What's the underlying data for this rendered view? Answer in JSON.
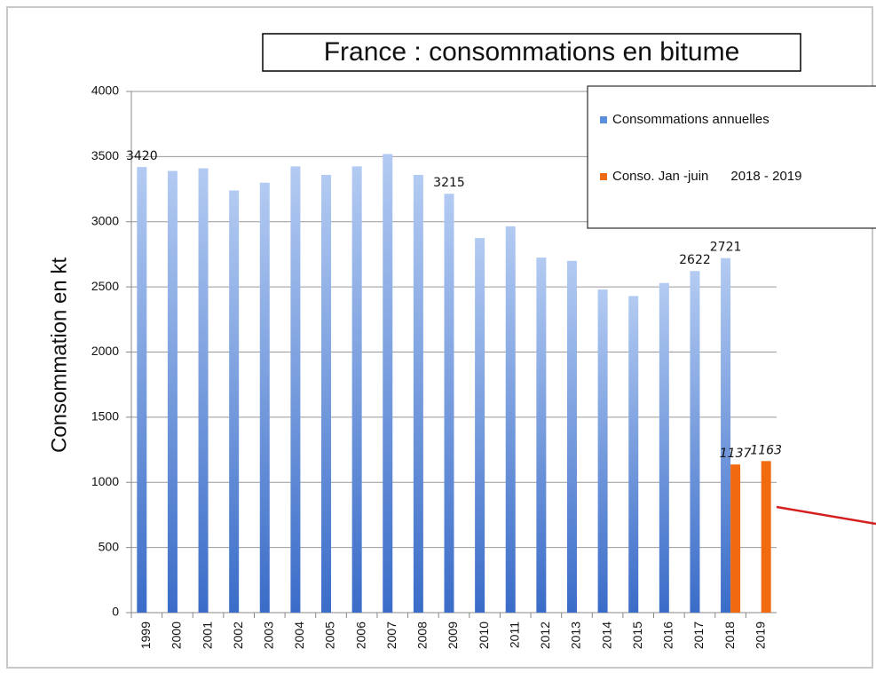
{
  "chart_data": {
    "type": "bar",
    "title": "France : consommations en bitume",
    "y_label": "Consommation en kt",
    "categories": [
      "1999",
      "2000",
      "2001",
      "2002",
      "2003",
      "2004",
      "2005",
      "2006",
      "2007",
      "2008",
      "2009",
      "2010",
      "2011",
      "2012",
      "2013",
      "2014",
      "2015",
      "2016",
      "2017",
      "2018",
      "2019"
    ],
    "series": [
      {
        "name": "Consommations annuelles",
        "color": "#4a7fd4",
        "values": [
          3420,
          3390,
          3410,
          3240,
          3300,
          3425,
          3360,
          3425,
          3520,
          3360,
          3215,
          2875,
          2965,
          2725,
          2700,
          2480,
          2430,
          2530,
          2622,
          2721,
          null
        ],
        "value_labels": [
          3420,
          null,
          null,
          null,
          null,
          null,
          null,
          null,
          null,
          null,
          3215,
          null,
          null,
          null,
          null,
          null,
          null,
          null,
          2622,
          2721,
          null
        ]
      },
      {
        "name": "Conso. Jan -juin      2018 - 2019",
        "color": "#f26a10",
        "values": [
          null,
          null,
          null,
          null,
          null,
          null,
          null,
          null,
          null,
          null,
          null,
          null,
          null,
          null,
          null,
          null,
          null,
          null,
          null,
          1137,
          1163
        ],
        "value_labels": [
          null,
          null,
          null,
          null,
          null,
          null,
          null,
          null,
          null,
          null,
          null,
          null,
          null,
          null,
          null,
          null,
          null,
          null,
          null,
          1137,
          1163
        ]
      }
    ],
    "ylim": [
      0,
      4000
    ],
    "yticks": [
      0,
      500,
      1000,
      1500,
      2000,
      2500,
      3000,
      3500,
      4000
    ],
    "grid": true
  }
}
